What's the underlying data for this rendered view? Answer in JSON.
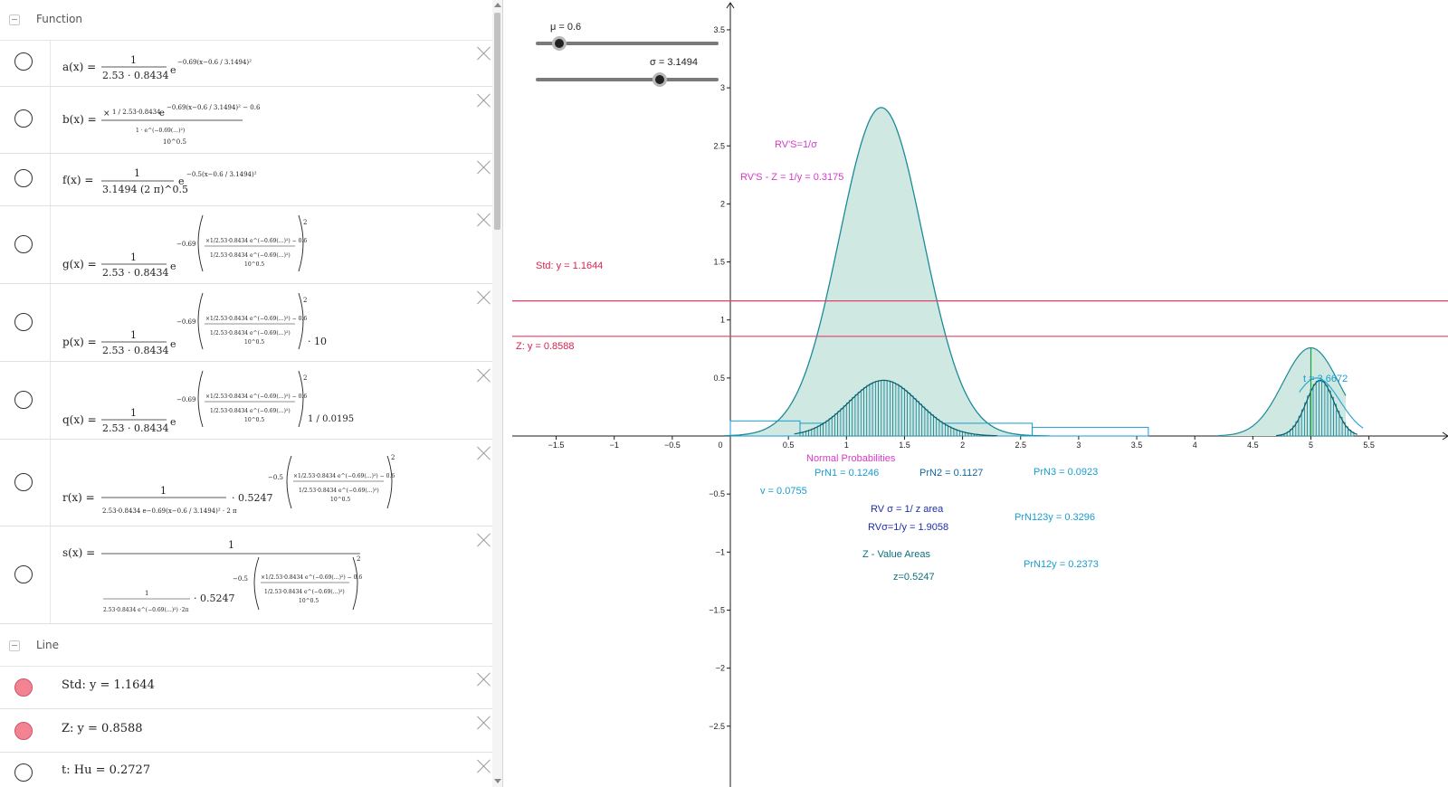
{
  "algebra": {
    "groups": [
      {
        "title": "Function"
      },
      {
        "title": "Line"
      }
    ],
    "functions": [
      {
        "name": "a(x) =",
        "lead": "1",
        "den": "2.53 · 0.8434",
        "exp": "−0.69(x−0.6 / 3.1494)²"
      },
      {
        "name": "b(x) =",
        "lead": "1 / 2.53·0.8434",
        "exp": "−0.69(x−0.6 / 3.1494)² − 0.6",
        "den": "10^0.5"
      },
      {
        "name": "f(x) =",
        "lead": "1",
        "den": "3.1494 (2 π)^0.5",
        "exp": "−0.5(x−0.6 / 3.1494)²"
      },
      {
        "name": "g(x) =",
        "lead": "1",
        "den": "2.53 · 0.8434",
        "exp": "−0.69"
      },
      {
        "name": "p(x) =",
        "lead": "1",
        "den": "2.53 · 0.8434",
        "exp": "−0.69",
        "tail": "· 10"
      },
      {
        "name": "q(x) =",
        "lead": "1",
        "den": "2.53 · 0.8434",
        "exp": "−0.69",
        "tail": "1 / 0.0195"
      },
      {
        "name": "r(x) =",
        "lead": "1",
        "den": "2.53·0.8434 e−0.69(x−0.6 / 3.1494)² · 2 π",
        "exp": "−0.5",
        "tail": "· 0.5247"
      },
      {
        "name": "s(x) =",
        "lead": "1",
        "den": "· 0.5247",
        "exp": "−0.5"
      }
    ],
    "lines": [
      {
        "text": "Std: y = 1.1644",
        "color": "#f38393"
      },
      {
        "text": "Z: y = 0.8588",
        "color": "#f38393"
      },
      {
        "text": "t: Hu = 0.2727"
      }
    ]
  },
  "graphics": {
    "sliders": [
      {
        "label": "μ = 0.6",
        "value": 0.6
      },
      {
        "label": "σ = 3.1494",
        "value": 3.1494
      }
    ],
    "texts": {
      "rvs": "RV'S=1/σ",
      "rvs_z": "RV'S - Z = 1/y = 0.3175",
      "std": "Std: y = 1.1644",
      "z": "Z: y = 0.8588",
      "t": "t = 3.6672",
      "normal_prob": "Normal Probabilities",
      "prn1": "PrN1 = 0.1246",
      "prn2": "PrN2 = 0.1127",
      "prn3": "PrN3 = 0.0923",
      "v": "v = 0.0755",
      "rv_sigma": "RV σ = 1/ z area",
      "rv_sigma_y": "RVσ=1/y = 1.9058",
      "prn123y": "PrN123y = 0.3296",
      "z_value_areas": "Z - Value Areas",
      "prn12y": "PrN12y = 0.2373",
      "z_val": "z=0.5247"
    },
    "axes": {
      "x_ticks": [
        "−1.5",
        "−1",
        "−0.5",
        "0",
        "0.5",
        "1",
        "1.5",
        "2",
        "2.5",
        "3",
        "3.5",
        "4",
        "4.5",
        "5",
        "5.5"
      ],
      "y_ticks_pos": [
        "0.5",
        "1",
        "1.5",
        "2",
        "2.5",
        "3",
        "3.5"
      ],
      "y_ticks_neg": [
        "−0.5",
        "−1",
        "−1.5",
        "−2",
        "−2.5"
      ]
    },
    "colors": {
      "curve": "#1b8a99",
      "fill": "#cfe9e2",
      "bars": "#0d7c8c",
      "hline": "#e0406a",
      "magenta": "#d63ac8",
      "cyan": "#1a9ccf",
      "navy": "#1e2fa8",
      "green": "#1aa33b"
    }
  }
}
